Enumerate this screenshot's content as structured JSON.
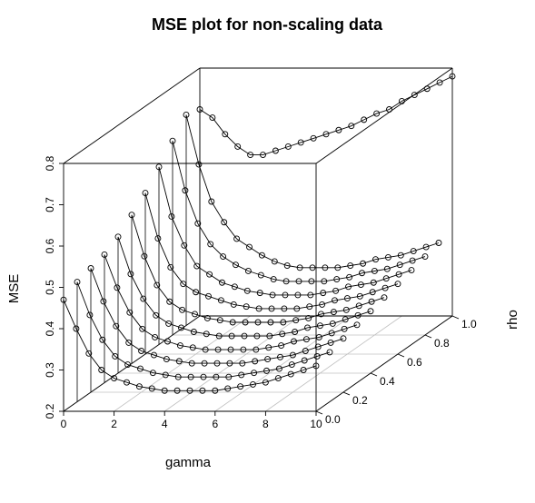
{
  "chart_data": {
    "type": "scatter",
    "title": "MSE plot for non-scaling data",
    "xlabel": "gamma",
    "ylabel": "rho",
    "zlabel": "MSE",
    "xlim": [
      0,
      10
    ],
    "ylim": [
      0,
      1
    ],
    "zlim": [
      0.2,
      0.8
    ],
    "x_ticks": [
      "0",
      "2",
      "4",
      "6",
      "8",
      "10"
    ],
    "y_ticks": [
      "0.0",
      "0.2",
      "0.4",
      "0.6",
      "0.8",
      "1.0"
    ],
    "z_ticks": [
      "0.2",
      "0.3",
      "0.4",
      "0.5",
      "0.6",
      "0.7",
      "0.8"
    ],
    "gamma_values": [
      0,
      0.5,
      1,
      1.5,
      2,
      2.5,
      3,
      3.5,
      4,
      4.5,
      5,
      5.5,
      6,
      6.5,
      7,
      7.5,
      8,
      8.5,
      9,
      9.5,
      10
    ],
    "rho_values": [
      0,
      0.1,
      0.2,
      0.3,
      0.4,
      0.5,
      0.6,
      0.7,
      0.8,
      0.9,
      1.0
    ],
    "series": [
      {
        "rho": 0.0,
        "values": [
          0.47,
          0.4,
          0.34,
          0.3,
          0.28,
          0.27,
          0.26,
          0.255,
          0.25,
          0.25,
          0.25,
          0.25,
          0.25,
          0.255,
          0.26,
          0.265,
          0.27,
          0.28,
          0.29,
          0.3,
          0.31
        ]
      },
      {
        "rho": 0.1,
        "values": [
          0.49,
          0.41,
          0.35,
          0.31,
          0.29,
          0.28,
          0.27,
          0.265,
          0.26,
          0.26,
          0.26,
          0.26,
          0.26,
          0.265,
          0.27,
          0.275,
          0.28,
          0.29,
          0.3,
          0.31,
          0.32
        ]
      },
      {
        "rho": 0.2,
        "values": [
          0.5,
          0.42,
          0.36,
          0.32,
          0.3,
          0.29,
          0.28,
          0.275,
          0.27,
          0.27,
          0.27,
          0.27,
          0.27,
          0.275,
          0.28,
          0.285,
          0.29,
          0.3,
          0.31,
          0.32,
          0.33
        ]
      },
      {
        "rho": 0.3,
        "values": [
          0.51,
          0.43,
          0.37,
          0.33,
          0.31,
          0.3,
          0.29,
          0.285,
          0.28,
          0.28,
          0.28,
          0.28,
          0.28,
          0.285,
          0.29,
          0.3,
          0.305,
          0.31,
          0.32,
          0.33,
          0.34
        ]
      },
      {
        "rho": 0.4,
        "values": [
          0.53,
          0.44,
          0.38,
          0.34,
          0.32,
          0.31,
          0.3,
          0.295,
          0.29,
          0.29,
          0.29,
          0.29,
          0.29,
          0.295,
          0.3,
          0.31,
          0.315,
          0.32,
          0.33,
          0.34,
          0.35
        ]
      },
      {
        "rho": 0.5,
        "values": [
          0.56,
          0.46,
          0.39,
          0.35,
          0.33,
          0.32,
          0.31,
          0.305,
          0.3,
          0.3,
          0.3,
          0.3,
          0.3,
          0.305,
          0.31,
          0.32,
          0.325,
          0.33,
          0.34,
          0.35,
          0.36
        ]
      },
      {
        "rho": 0.6,
        "values": [
          0.59,
          0.48,
          0.41,
          0.37,
          0.35,
          0.34,
          0.33,
          0.32,
          0.315,
          0.31,
          0.31,
          0.31,
          0.31,
          0.315,
          0.32,
          0.33,
          0.335,
          0.34,
          0.35,
          0.36,
          0.37
        ]
      },
      {
        "rho": 0.7,
        "values": [
          0.63,
          0.51,
          0.44,
          0.39,
          0.37,
          0.35,
          0.34,
          0.33,
          0.325,
          0.32,
          0.32,
          0.32,
          0.32,
          0.325,
          0.33,
          0.34,
          0.345,
          0.35,
          0.36,
          0.37,
          0.38
        ]
      },
      {
        "rho": 0.8,
        "values": [
          0.67,
          0.55,
          0.47,
          0.42,
          0.39,
          0.37,
          0.355,
          0.345,
          0.335,
          0.33,
          0.33,
          0.33,
          0.33,
          0.335,
          0.34,
          0.35,
          0.355,
          0.36,
          0.37,
          0.38,
          0.39
        ]
      },
      {
        "rho": 0.9,
        "values": [
          0.71,
          0.59,
          0.5,
          0.45,
          0.41,
          0.39,
          0.37,
          0.355,
          0.345,
          0.34,
          0.34,
          0.34,
          0.34,
          0.345,
          0.35,
          0.36,
          0.365,
          0.37,
          0.38,
          0.39,
          0.4
        ]
      },
      {
        "rho": 1.0,
        "values": [
          0.7,
          0.68,
          0.64,
          0.61,
          0.59,
          0.59,
          0.6,
          0.61,
          0.62,
          0.63,
          0.64,
          0.65,
          0.66,
          0.675,
          0.69,
          0.7,
          0.72,
          0.735,
          0.75,
          0.765,
          0.78
        ]
      }
    ],
    "colors": {
      "line": "#000000",
      "point": "#000000",
      "box": "#000000",
      "grid": "#c0c0c0"
    }
  }
}
